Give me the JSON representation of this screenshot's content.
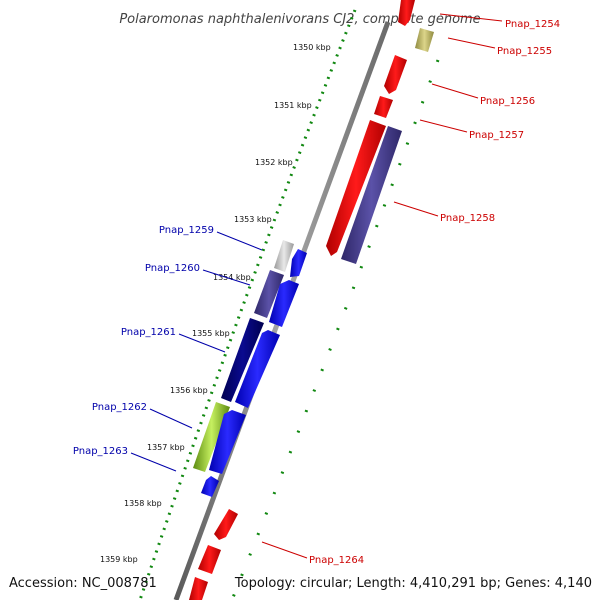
{
  "title": "Polaromonas naphthalenivorans CJ2, complete genome",
  "accession": "Accession: NC_008781",
  "topology": "Topology: circular; Length: 4,410,291 bp; Genes: 4,140",
  "colors": {
    "plus_strand_label": "#cc0000",
    "minus_strand_label": "#0000aa",
    "backbone": "#808080",
    "tick_dots": "#118811"
  },
  "scale_ticks": [
    {
      "label": "1350 kbp"
    },
    {
      "label": "1351 kbp"
    },
    {
      "label": "1352 kbp"
    },
    {
      "label": "1353 kbp"
    },
    {
      "label": "1354 kbp"
    },
    {
      "label": "1355 kbp"
    },
    {
      "label": "1356 kbp"
    },
    {
      "label": "1357 kbp"
    },
    {
      "label": "1358 kbp"
    },
    {
      "label": "1359 kbp"
    }
  ],
  "plus_strand_genes": [
    {
      "name": "Pnap_1254",
      "color": "#ff0000"
    },
    {
      "name": "Pnap_1255",
      "color": "#bdb76b"
    },
    {
      "name": "Pnap_1256",
      "color": "#ff0000"
    },
    {
      "name": "Pnap_1257",
      "color": "#ff0000"
    },
    {
      "name": "Pnap_1258",
      "color": "#ff0000"
    },
    {
      "name": "Pnap_1264",
      "color": "#ff0000"
    }
  ],
  "minus_strand_genes": [
    {
      "name": "Pnap_1259",
      "color": "#bbbbbb"
    },
    {
      "name": "Pnap_1260",
      "color": "#483d8b"
    },
    {
      "name": "Pnap_1261",
      "color": "#000080"
    },
    {
      "name": "Pnap_1262",
      "color": "#9acd32"
    },
    {
      "name": "Pnap_1263",
      "color": "#0000ff"
    }
  ]
}
